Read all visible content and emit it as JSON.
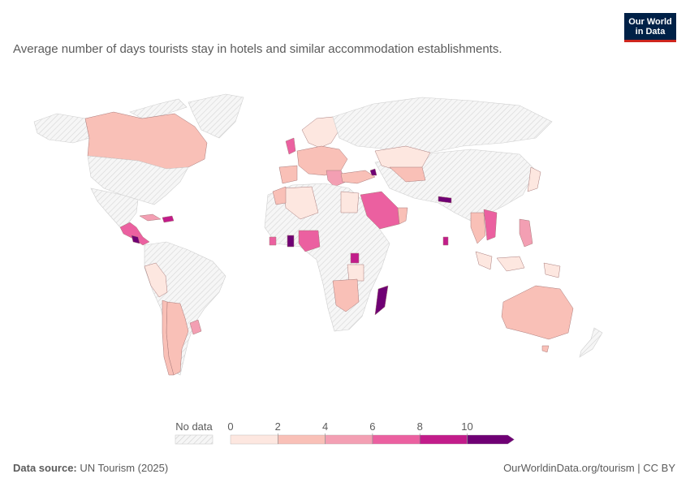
{
  "subtitle": "Average number of days tourists stay in hotels and similar accommodation establishments.",
  "logo": {
    "line1": "Our World",
    "line2": "in Data"
  },
  "footer": {
    "source_label": "Data source:",
    "source_value": "UN Tourism (2025)",
    "url_license": "OurWorldinData.org/tourism | CC BY"
  },
  "legend": {
    "no_data_label": "No data",
    "ticks": [
      "0",
      "2",
      "4",
      "6",
      "8",
      "10"
    ],
    "colors": [
      "#fde7e0",
      "#f9c0b7",
      "#f39fb3",
      "#eb60a0",
      "#c21c8a",
      "#6f0074"
    ]
  },
  "map_data": {
    "no_data_color": "hatched",
    "bins": [
      {
        "range": "0-2",
        "color": "#fde7e0"
      },
      {
        "range": "2-4",
        "color": "#f9c0b7"
      },
      {
        "range": "4-6",
        "color": "#f39fb3"
      },
      {
        "range": "6-8",
        "color": "#eb60a0"
      },
      {
        "range": "8-10",
        "color": "#c21c8a"
      },
      {
        "range": ">10",
        "color": "#6f0074"
      }
    ]
  }
}
